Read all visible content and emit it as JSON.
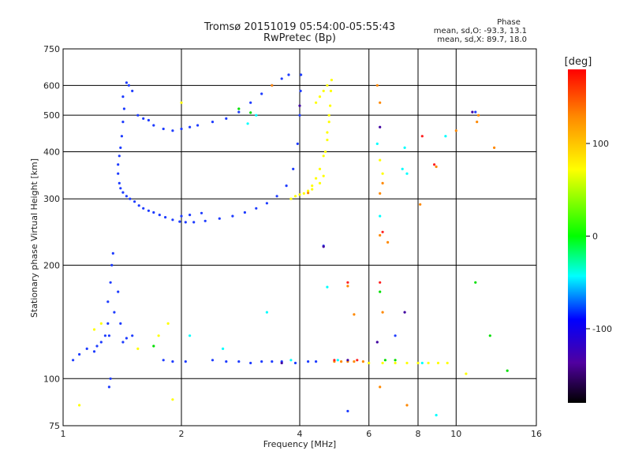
{
  "chart_data": {
    "type": "scatter",
    "title": "Tromsø 20151019 05:54:00-05:55:43",
    "subtitle": "RwPretec (Bp)",
    "xlabel": "Frequency [MHz]",
    "ylabel": "Stationary phase Virtual Height [km]",
    "x_scale": "log",
    "y_scale": "log",
    "xlim": [
      1,
      16
    ],
    "ylim": [
      75,
      750
    ],
    "x_ticks": [
      "1",
      "2",
      "4",
      "6",
      "8",
      "10",
      "16"
    ],
    "y_ticks": [
      "75",
      "100",
      "200",
      "300",
      "400",
      "500",
      "600",
      "750"
    ],
    "x_gridlines": [
      2,
      4,
      6,
      8,
      10
    ],
    "y_gridlines": [
      100,
      200,
      300,
      400,
      500,
      600
    ],
    "phase_info": {
      "title": "Phase",
      "line1": "mean, sd,O: -93.3, 13.1",
      "line2": "mean, sd,X:  89.7, 18.0"
    },
    "colorbar": {
      "label": "[deg]",
      "range": [
        -180,
        180
      ],
      "ticks": [
        "100",
        "0",
        "-100"
      ],
      "colors": [
        "#ff0000",
        "#ff8800",
        "#ffff00",
        "#00ff00",
        "#00ffff",
        "#0000ff",
        "#5000a0",
        "#000000"
      ]
    },
    "series": [
      {
        "color": "#1e3cff",
        "points": [
          [
            1.42,
            560
          ],
          [
            1.43,
            520
          ],
          [
            1.42,
            480
          ],
          [
            1.41,
            440
          ],
          [
            1.4,
            410
          ],
          [
            1.39,
            390
          ],
          [
            1.38,
            370
          ],
          [
            1.38,
            350
          ],
          [
            1.39,
            330
          ],
          [
            1.4,
            320
          ],
          [
            1.42,
            312
          ],
          [
            1.45,
            305
          ],
          [
            1.48,
            300
          ],
          [
            1.52,
            295
          ],
          [
            1.56,
            288
          ],
          [
            1.6,
            283
          ],
          [
            1.65,
            279
          ],
          [
            1.7,
            276
          ],
          [
            1.76,
            272
          ],
          [
            1.82,
            268
          ],
          [
            1.9,
            264
          ],
          [
            1.98,
            261
          ],
          [
            2.05,
            260
          ],
          [
            2.15,
            260
          ],
          [
            2.3,
            262
          ],
          [
            2.5,
            266
          ],
          [
            2.7,
            270
          ],
          [
            2.9,
            276
          ],
          [
            3.1,
            283
          ],
          [
            3.3,
            292
          ],
          [
            3.5,
            305
          ],
          [
            3.7,
            325
          ],
          [
            3.85,
            360
          ],
          [
            3.95,
            420
          ],
          [
            4.0,
            500
          ],
          [
            4.02,
            580
          ],
          [
            4.03,
            640
          ],
          [
            1.45,
            610
          ],
          [
            1.47,
            600
          ],
          [
            1.5,
            580
          ],
          [
            1.55,
            500
          ],
          [
            1.6,
            490
          ],
          [
            1.65,
            485
          ],
          [
            1.7,
            470
          ],
          [
            1.8,
            460
          ],
          [
            1.9,
            455
          ],
          [
            2.0,
            460
          ],
          [
            2.1,
            465
          ],
          [
            2.2,
            470
          ],
          [
            2.4,
            480
          ],
          [
            2.6,
            490
          ],
          [
            2.8,
            510
          ],
          [
            3.0,
            540
          ],
          [
            3.2,
            570
          ],
          [
            3.4,
            600
          ],
          [
            3.6,
            625
          ],
          [
            3.75,
            640
          ],
          [
            2.0,
            270
          ],
          [
            2.1,
            272
          ],
          [
            2.25,
            275
          ],
          [
            1.3,
            160
          ],
          [
            1.32,
            180
          ],
          [
            1.33,
            200
          ],
          [
            1.34,
            215
          ],
          [
            1.3,
            140
          ],
          [
            1.31,
            130
          ],
          [
            1.35,
            150
          ],
          [
            1.38,
            170
          ],
          [
            1.4,
            140
          ],
          [
            1.42,
            125
          ],
          [
            1.45,
            128
          ],
          [
            1.5,
            130
          ],
          [
            1.2,
            118
          ],
          [
            1.15,
            120
          ],
          [
            1.1,
            116
          ],
          [
            1.06,
            112
          ],
          [
            1.25,
            125
          ],
          [
            1.28,
            130
          ],
          [
            1.22,
            122
          ],
          [
            1.32,
            100
          ],
          [
            1.31,
            95
          ],
          [
            1.8,
            112
          ],
          [
            1.9,
            111
          ],
          [
            2.05,
            111
          ],
          [
            2.4,
            112
          ],
          [
            2.6,
            111
          ],
          [
            2.8,
            111
          ],
          [
            3.0,
            110
          ],
          [
            3.2,
            111
          ],
          [
            3.4,
            111
          ],
          [
            3.6,
            111
          ],
          [
            3.9,
            110
          ],
          [
            4.2,
            111
          ],
          [
            4.4,
            111
          ],
          [
            5.3,
            82
          ],
          [
            7.0,
            130
          ],
          [
            4.6,
            225
          ],
          [
            11.2,
            510
          ]
        ]
      },
      {
        "color": "#ffff00",
        "points": [
          [
            4.1,
            310
          ],
          [
            4.2,
            315
          ],
          [
            4.3,
            325
          ],
          [
            4.4,
            340
          ],
          [
            4.5,
            360
          ],
          [
            4.6,
            390
          ],
          [
            4.7,
            430
          ],
          [
            4.75,
            480
          ],
          [
            4.78,
            530
          ],
          [
            4.8,
            580
          ],
          [
            4.82,
            620
          ],
          [
            4.7,
            600
          ],
          [
            4.6,
            580
          ],
          [
            4.5,
            560
          ],
          [
            4.4,
            540
          ],
          [
            3.9,
            305
          ],
          [
            3.8,
            300
          ],
          [
            4.0,
            308
          ],
          [
            4.65,
            400
          ],
          [
            4.7,
            450
          ],
          [
            4.75,
            500
          ],
          [
            4.5,
            330
          ],
          [
            4.6,
            345
          ],
          [
            4.3,
            318
          ],
          [
            6.4,
            380
          ],
          [
            6.5,
            350
          ],
          [
            1.25,
            140
          ],
          [
            1.2,
            135
          ],
          [
            1.55,
            120
          ],
          [
            1.9,
            88
          ],
          [
            1.1,
            85
          ],
          [
            2.0,
            540
          ],
          [
            1.85,
            140
          ],
          [
            1.75,
            130
          ],
          [
            10.6,
            103
          ],
          [
            8.0,
            110
          ],
          [
            8.5,
            110
          ],
          [
            9.0,
            110
          ],
          [
            9.5,
            110
          ],
          [
            7.5,
            110
          ],
          [
            7.0,
            110
          ],
          [
            6.5,
            110
          ],
          [
            6.0,
            110
          ]
        ]
      },
      {
        "color": "#ff8800",
        "points": [
          [
            4.2,
            311
          ],
          [
            4.9,
            111
          ],
          [
            5.1,
            111
          ],
          [
            5.3,
            111
          ],
          [
            5.5,
            111
          ],
          [
            5.8,
            111
          ],
          [
            6.4,
            540
          ],
          [
            6.3,
            600
          ],
          [
            6.5,
            330
          ],
          [
            6.4,
            310
          ],
          [
            6.4,
            240
          ],
          [
            6.7,
            230
          ],
          [
            7.5,
            85
          ],
          [
            8.1,
            290
          ],
          [
            8.9,
            365
          ],
          [
            10.0,
            455
          ],
          [
            11.3,
            480
          ],
          [
            12.5,
            410
          ],
          [
            6.4,
            95
          ],
          [
            3.4,
            600
          ],
          [
            5.5,
            148
          ],
          [
            5.3,
            176
          ],
          [
            6.5,
            150
          ],
          [
            11.4,
            500
          ]
        ]
      },
      {
        "color": "#ff2020",
        "points": [
          [
            6.4,
            180
          ],
          [
            5.3,
            180
          ],
          [
            8.2,
            440
          ],
          [
            8.8,
            370
          ],
          [
            6.5,
            245
          ],
          [
            4.9,
            112
          ],
          [
            5.6,
            112
          ]
        ]
      },
      {
        "color": "#00ffff",
        "points": [
          [
            4.7,
            175
          ],
          [
            2.55,
            120
          ],
          [
            3.3,
            150
          ],
          [
            2.1,
            130
          ],
          [
            5.0,
            112
          ],
          [
            3.8,
            112
          ],
          [
            7.5,
            350
          ],
          [
            7.3,
            360
          ],
          [
            9.4,
            440
          ],
          [
            8.2,
            110
          ],
          [
            8.9,
            80
          ],
          [
            6.3,
            420
          ],
          [
            6.4,
            270
          ],
          [
            7.4,
            410
          ],
          [
            2.95,
            475
          ],
          [
            3.1,
            500
          ]
        ]
      },
      {
        "color": "#00e000",
        "points": [
          [
            11.2,
            180
          ],
          [
            13.5,
            105
          ],
          [
            6.6,
            112
          ],
          [
            7.0,
            112
          ],
          [
            6.4,
            170
          ],
          [
            12.2,
            130
          ],
          [
            1.7,
            122
          ],
          [
            3.0,
            508
          ],
          [
            2.8,
            520
          ]
        ]
      },
      {
        "color": "#4000a0",
        "points": [
          [
            7.4,
            150
          ],
          [
            6.3,
            125
          ],
          [
            4.6,
            224
          ],
          [
            3.6,
            110
          ],
          [
            11.0,
            510
          ],
          [
            6.4,
            465
          ],
          [
            5.3,
            112
          ],
          [
            4.0,
            530
          ]
        ]
      }
    ]
  }
}
